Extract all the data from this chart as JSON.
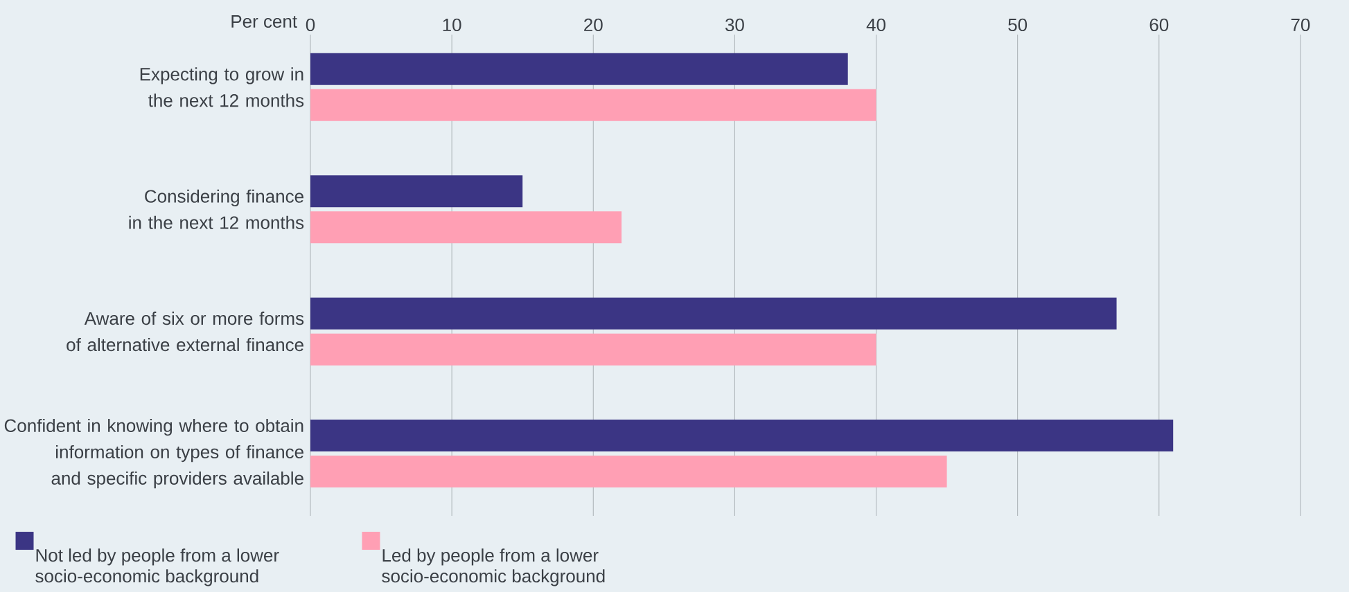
{
  "chart_data": {
    "type": "bar",
    "orientation": "horizontal",
    "xlabel": "Per cent",
    "categories": [
      "Expecting to grow in the next 12 months",
      "Considering finance in the next 12 months",
      "Aware of six or more forms of alternative external finance",
      "Confident in knowing where to obtain information on types of finance and specific providers available"
    ],
    "series": [
      {
        "name": "Not led by people from a lower socio-economic background",
        "color": "#3b3584",
        "values": [
          38,
          15,
          57,
          61
        ]
      },
      {
        "name": "Led by people from a lower socio-economic background",
        "color": "#ff9fb4",
        "values": [
          40,
          22,
          40,
          45
        ]
      }
    ],
    "xlim": [
      0,
      70
    ],
    "xticks": [
      0,
      10,
      20,
      30,
      40,
      50,
      60,
      70
    ],
    "grid": "x",
    "legend": "bottom left"
  }
}
